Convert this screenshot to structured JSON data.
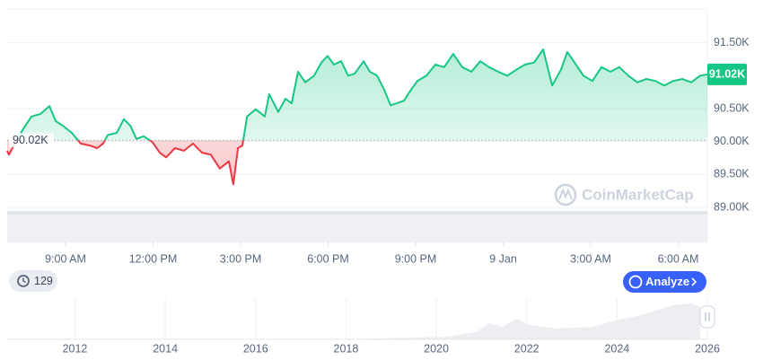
{
  "chart_data": [
    {
      "type": "line",
      "xlim": [
        7,
        31
      ],
      "ylim": [
        89,
        92
      ],
      "grid": true,
      "colors": {
        "above": "#16c784",
        "below": "#ea3943"
      },
      "baseline": {
        "value": 90.02,
        "label": "90.02K"
      },
      "last_price": {
        "value": 91.02,
        "label": "91.02K"
      },
      "xticks": [
        {
          "value": 9,
          "label": "9:00 AM"
        },
        {
          "value": 12,
          "label": "12:00 PM"
        },
        {
          "value": 15,
          "label": "3:00 PM"
        },
        {
          "value": 18,
          "label": "6:00 PM"
        },
        {
          "value": 21,
          "label": "9:00 PM"
        },
        {
          "value": 24,
          "label": "9 Jan"
        },
        {
          "value": 27,
          "label": "3:00 AM"
        },
        {
          "value": 30,
          "label": "6:00 AM"
        }
      ],
      "yticks": [
        {
          "value": 89,
          "label": "89.00K"
        },
        {
          "value": 89.5,
          "label": "89.50K"
        },
        {
          "value": 90,
          "label": "90.00K"
        },
        {
          "value": 90.5,
          "label": "90.50K"
        },
        {
          "value": 91.5,
          "label": "91.50K"
        }
      ],
      "x": [
        7.0,
        7.06,
        7.52,
        7.83,
        8.14,
        8.45,
        8.66,
        8.91,
        9.22,
        9.52,
        9.83,
        10.08,
        10.29,
        10.45,
        10.75,
        11.0,
        11.22,
        11.43,
        11.68,
        11.98,
        12.23,
        12.45,
        12.75,
        13.06,
        13.37,
        13.68,
        13.98,
        14.29,
        14.6,
        14.75,
        14.91,
        15.06,
        15.22,
        15.52,
        15.83,
        15.98,
        16.29,
        16.54,
        16.75,
        16.97,
        17.22,
        17.52,
        17.77,
        17.98,
        18.2,
        18.45,
        18.69,
        18.91,
        19.22,
        19.43,
        19.68,
        19.92,
        20.14,
        20.35,
        20.6,
        20.85,
        21.06,
        21.37,
        21.68,
        21.98,
        22.29,
        22.6,
        22.91,
        23.22,
        23.52,
        23.83,
        24.14,
        24.45,
        24.75,
        25.06,
        25.37,
        25.68,
        25.98,
        26.2,
        26.45,
        26.75,
        27.06,
        27.37,
        27.68,
        27.98,
        28.29,
        28.6,
        28.91,
        29.22,
        29.52,
        29.83,
        30.14,
        30.45,
        30.75,
        31.0
      ],
      "values": [
        89.86,
        89.8,
        90.17,
        90.38,
        90.42,
        90.54,
        90.31,
        90.24,
        90.13,
        89.97,
        89.94,
        89.9,
        89.97,
        90.1,
        90.13,
        90.34,
        90.24,
        90.04,
        90.08,
        89.99,
        89.83,
        89.76,
        89.9,
        89.86,
        89.97,
        89.83,
        89.8,
        89.59,
        89.7,
        89.35,
        89.9,
        89.94,
        90.38,
        90.49,
        90.38,
        90.72,
        90.45,
        90.65,
        90.58,
        91.06,
        90.9,
        91.0,
        91.2,
        91.3,
        91.17,
        91.22,
        91.0,
        91.03,
        91.22,
        91.06,
        91.0,
        90.79,
        90.55,
        90.58,
        90.62,
        90.79,
        90.92,
        91.0,
        91.17,
        91.13,
        91.33,
        91.13,
        91.06,
        91.22,
        91.13,
        91.06,
        91.0,
        91.09,
        91.17,
        91.2,
        91.4,
        90.85,
        91.09,
        91.36,
        91.2,
        91.0,
        90.92,
        91.13,
        91.06,
        91.13,
        91.0,
        90.9,
        90.95,
        90.92,
        90.85,
        90.92,
        90.95,
        90.9,
        91.0,
        91.02
      ]
    },
    {
      "type": "overview",
      "xlim": [
        2010.5,
        2026
      ],
      "xticks": [
        2012,
        2014,
        2016,
        2018,
        2020,
        2022,
        2024,
        2026
      ]
    }
  ],
  "ui": {
    "history_count": 129,
    "analyze_button": "Analyze",
    "watermark": "CoinMarketCap"
  }
}
